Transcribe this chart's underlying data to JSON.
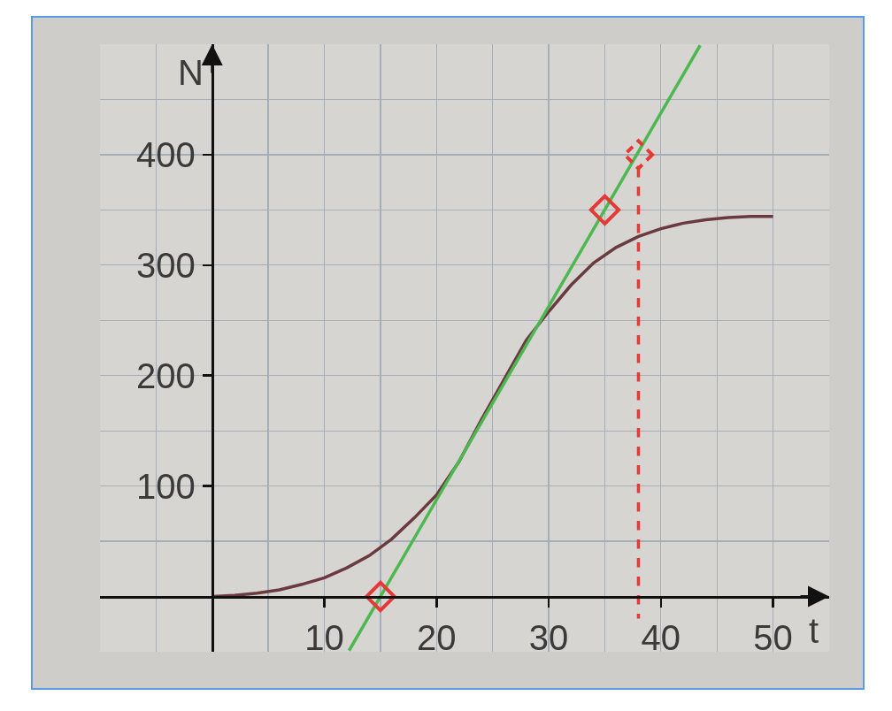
{
  "chart_data": {
    "type": "line",
    "xlabel": "t",
    "ylabel": "N",
    "xlim": [
      -10,
      55
    ],
    "ylim": [
      -50,
      500
    ],
    "xticks": [
      {
        "value": -10,
        "label": null
      },
      {
        "value": -5,
        "label": null
      },
      {
        "value": 0,
        "label": null
      },
      {
        "value": 5,
        "label": null
      },
      10,
      {
        "value": 15,
        "label": null
      },
      20,
      {
        "value": 25,
        "label": null
      },
      30,
      {
        "value": 35,
        "label": null
      },
      40,
      {
        "value": 45,
        "label": null
      },
      50,
      {
        "value": 55,
        "label": null
      }
    ],
    "yticks": [
      {
        "value": -50,
        "label": null
      },
      {
        "value": 0,
        "label": null
      },
      {
        "value": 50,
        "label": null
      },
      100,
      {
        "value": 150,
        "label": null
      },
      200,
      {
        "value": 250,
        "label": null
      },
      300,
      {
        "value": 350,
        "label": null
      },
      400,
      {
        "value": 450,
        "label": null
      },
      {
        "value": 500,
        "label": null
      }
    ],
    "grid": true,
    "series": [
      {
        "color": "#6b3a3f",
        "x": [
          0,
          2,
          4,
          6,
          8,
          10,
          12,
          14,
          16,
          18,
          20,
          22,
          24,
          26,
          28,
          30,
          32,
          34,
          36,
          38,
          40,
          42,
          44,
          46,
          48,
          50
        ],
        "values": [
          0,
          1,
          3,
          6,
          11,
          17,
          26,
          37,
          52,
          71,
          92,
          122,
          160,
          196,
          232,
          258,
          282,
          302,
          316,
          326,
          333,
          338,
          341,
          343,
          344,
          344
        ]
      },
      {
        "color": "#4cb84f",
        "x": [
          12.2,
          43.5
        ],
        "values": [
          -49,
          499
        ]
      },
      {
        "color": "#e53935",
        "line_style": "dashed",
        "x": [
          38,
          38
        ],
        "values": [
          388,
          -20
        ]
      },
      {
        "type": "scatter",
        "color": "#e53935",
        "marker": "diamond",
        "x": [
          15,
          35
        ],
        "values": [
          0,
          350
        ]
      },
      {
        "type": "scatter",
        "color": "#e53935",
        "marker": "diamond",
        "line_style": "dashed",
        "x": [
          38
        ],
        "values": [
          400
        ]
      }
    ]
  }
}
